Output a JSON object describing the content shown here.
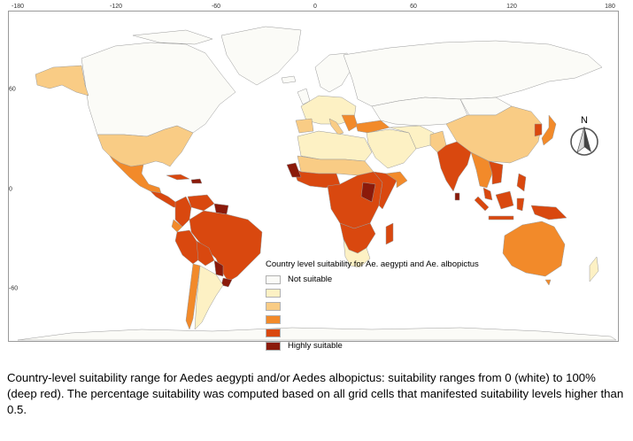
{
  "map": {
    "lon_ticks": [
      "-180",
      "-120",
      "-60",
      "0",
      "60",
      "120",
      "180"
    ],
    "lat_ticks": [
      "60",
      "0",
      "-60"
    ],
    "north_label": "N"
  },
  "legend": {
    "title": "Country level suitability for Ae. aegypti and Ae. albopictus",
    "classes": [
      {
        "label": "Not suitable",
        "color": "#fbfbf7"
      },
      {
        "label": "",
        "color": "#fdf1c4"
      },
      {
        "label": "",
        "color": "#f9cc85"
      },
      {
        "label": "",
        "color": "#f28a2a"
      },
      {
        "label": "",
        "color": "#d9480f"
      },
      {
        "label": "Highly suitable",
        "color": "#8b1a0a"
      }
    ]
  },
  "caption": "Country-level suitability range for Aedes aegypti and/or Aedes albopictus: suitability ranges from 0 (white) to 100% (deep red). The percentage suitability was computed based on all grid cells that manifested suitability levels higher than 0.5."
}
